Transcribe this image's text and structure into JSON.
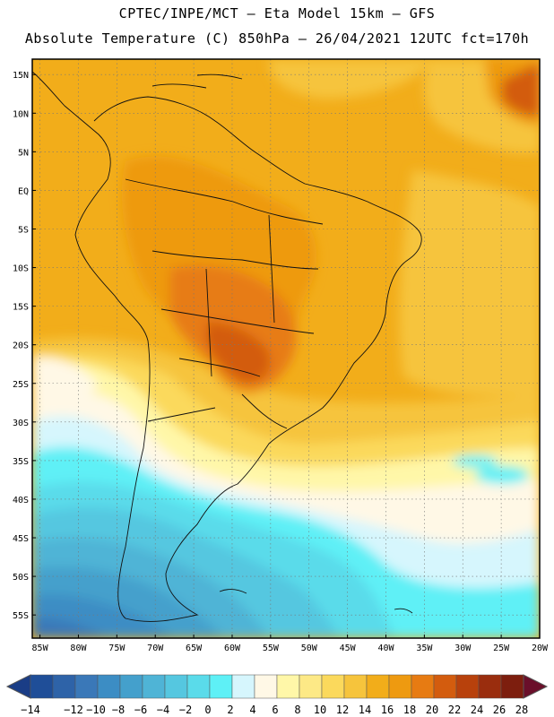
{
  "header": {
    "line1": "CPTEC/INPE/MCT –  Eta Model 15km – GFS",
    "line2": "Absolute Temperature (C) 850hPa – 26/04/2021 12UTC fct=170h"
  },
  "map": {
    "lat_range": [
      -58,
      17
    ],
    "lon_range": [
      -86,
      -20
    ],
    "lat_labels": [
      "15N",
      "10N",
      "5N",
      "EQ",
      "5S",
      "10S",
      "15S",
      "20S",
      "25S",
      "30S",
      "35S",
      "40S",
      "45S",
      "50S",
      "55S"
    ],
    "lat_values": [
      15,
      10,
      5,
      0,
      -5,
      -10,
      -15,
      -20,
      -25,
      -30,
      -35,
      -40,
      -45,
      -50,
      -55
    ],
    "lon_labels": [
      "85W",
      "80W",
      "75W",
      "70W",
      "65W",
      "60W",
      "55W",
      "50W",
      "45W",
      "40W",
      "35W",
      "30W",
      "25W",
      "20W"
    ],
    "lon_values": [
      -85,
      -80,
      -75,
      -70,
      -65,
      -60,
      -55,
      -50,
      -45,
      -40,
      -35,
      -30,
      -25,
      -20
    ]
  },
  "colorbar": {
    "labels": [
      "-14",
      "-12",
      "-10",
      "-8",
      "-6",
      "-4",
      "-2",
      "0",
      "2",
      "4",
      "6",
      "8",
      "10",
      "12",
      "14",
      "16",
      "18",
      "20",
      "22",
      "24",
      "26",
      "28"
    ],
    "colors": [
      "#1f4e98",
      "#2e63a8",
      "#3a78b8",
      "#3c8dc4",
      "#44a0cc",
      "#4fb4d6",
      "#55c7e0",
      "#5adbea",
      "#5ef0f6",
      "#d6f6fd",
      "#fff8e6",
      "#fff7a8",
      "#fde986",
      "#fbd95c",
      "#f6c43c",
      "#f2ad1a",
      "#ee9a10",
      "#e77b12",
      "#d35c0e",
      "#b8410c",
      "#9a2d0e",
      "#7d1e0e"
    ],
    "low_color": "#1a3d86",
    "high_color": "#6a0f2a"
  }
}
